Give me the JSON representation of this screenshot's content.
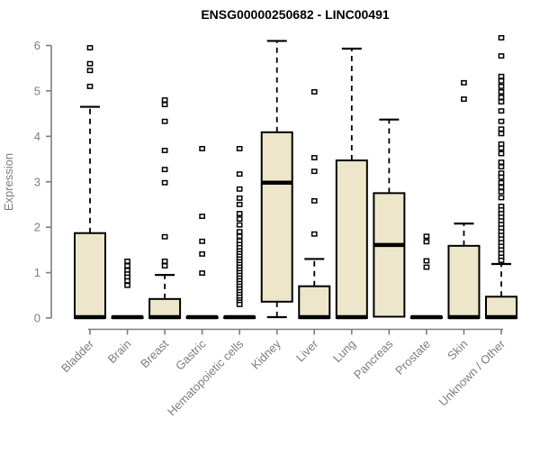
{
  "colors": {
    "box_fill": "#EDE6CB",
    "box_stroke": "#000000",
    "axis_gray": "#7D7D7D",
    "title_color": "#000000",
    "background": "#FFFFFF"
  },
  "chart_data": {
    "type": "boxplot",
    "title": "ENSG00000250682 - LINC00491",
    "xlabel": "",
    "ylabel": "Expression",
    "ylim": [
      0,
      6
    ],
    "yticks": [
      0,
      1,
      2,
      3,
      4,
      5,
      6
    ],
    "grid": false,
    "legend": false,
    "categories": [
      "Bladder",
      "Brain",
      "Breast",
      "Gastric",
      "Hematopoietic cells",
      "Kidney",
      "Liver",
      "Lung",
      "Pancreas",
      "Prostate",
      "Skin",
      "Unknown / Other"
    ],
    "series": [
      {
        "name": "Bladder",
        "q1": 0,
        "median": 0.02,
        "q3": 1.87,
        "whisker_low": null,
        "whisker_high": 4.65,
        "outliers": [
          5.95,
          5.6,
          5.45,
          5.1
        ]
      },
      {
        "name": "Brain",
        "q1": 0,
        "median": 0.02,
        "q3": 0.03,
        "whisker_low": null,
        "whisker_high": null,
        "outliers": [
          1.25,
          1.15,
          1.05,
          0.97,
          0.9,
          0.82,
          0.72
        ]
      },
      {
        "name": "Breast",
        "q1": 0,
        "median": 0.02,
        "q3": 0.42,
        "whisker_low": null,
        "whisker_high": 0.95,
        "outliers": [
          4.8,
          4.7,
          4.33,
          3.69,
          3.27,
          2.98,
          1.79,
          1.25,
          1.15
        ]
      },
      {
        "name": "Gastric",
        "q1": 0,
        "median": 0.02,
        "q3": 0.03,
        "whisker_low": null,
        "whisker_high": null,
        "outliers": [
          3.73,
          2.24,
          1.69,
          1.41,
          0.99
        ]
      },
      {
        "name": "Hematopoietic cells",
        "q1": 0,
        "median": 0.02,
        "q3": 0.03,
        "whisker_low": null,
        "whisker_high": null,
        "outliers": [
          3.73,
          3.17,
          2.84,
          2.64,
          2.5,
          2.3,
          2.18,
          2.05,
          1.9,
          1.8,
          1.7,
          1.62,
          1.55,
          1.48,
          1.42,
          1.36,
          1.3,
          1.24,
          1.18,
          1.12,
          1.06,
          1.0,
          0.94,
          0.88,
          0.82,
          0.76,
          0.7,
          0.64,
          0.58,
          0.52,
          0.46,
          0.4,
          0.35,
          0.3
        ]
      },
      {
        "name": "Kidney",
        "q1": 0.36,
        "median": 2.98,
        "q3": 4.09,
        "whisker_low": 0.02,
        "whisker_high": 6.1,
        "outliers": []
      },
      {
        "name": "Liver",
        "q1": 0,
        "median": 0.02,
        "q3": 0.7,
        "whisker_low": null,
        "whisker_high": 1.3,
        "outliers": [
          4.98,
          3.53,
          3.23,
          2.58,
          1.85
        ]
      },
      {
        "name": "Lung",
        "q1": 0,
        "median": 0.02,
        "q3": 3.47,
        "whisker_low": null,
        "whisker_high": 5.93,
        "outliers": []
      },
      {
        "name": "Pancreas",
        "q1": 0.03,
        "median": 1.61,
        "q3": 2.75,
        "whisker_low": null,
        "whisker_high": 4.37,
        "outliers": []
      },
      {
        "name": "Prostate",
        "q1": 0,
        "median": 0.02,
        "q3": 0.03,
        "whisker_low": null,
        "whisker_high": null,
        "outliers": [
          1.8,
          1.68,
          1.26,
          1.12
        ]
      },
      {
        "name": "Skin",
        "q1": 0,
        "median": 0.02,
        "q3": 1.59,
        "whisker_low": null,
        "whisker_high": 2.08,
        "outliers": [
          5.18,
          4.82
        ]
      },
      {
        "name": "Unknown / Other",
        "q1": 0,
        "median": 0.02,
        "q3": 0.47,
        "whisker_low": null,
        "whisker_high": 1.19,
        "outliers": [
          6.17,
          5.77,
          5.32,
          5.22,
          5.1,
          4.98,
          4.86,
          4.76,
          4.56,
          4.33,
          4.16,
          4.06,
          3.83,
          3.74,
          3.62,
          3.43,
          3.33,
          3.19,
          3.1,
          2.98,
          2.88,
          2.78,
          2.65,
          2.46,
          2.38,
          2.3,
          2.22,
          2.14,
          2.06,
          1.98,
          1.9,
          1.82,
          1.74,
          1.66,
          1.58,
          1.5,
          1.42,
          1.34,
          1.27
        ]
      }
    ]
  }
}
